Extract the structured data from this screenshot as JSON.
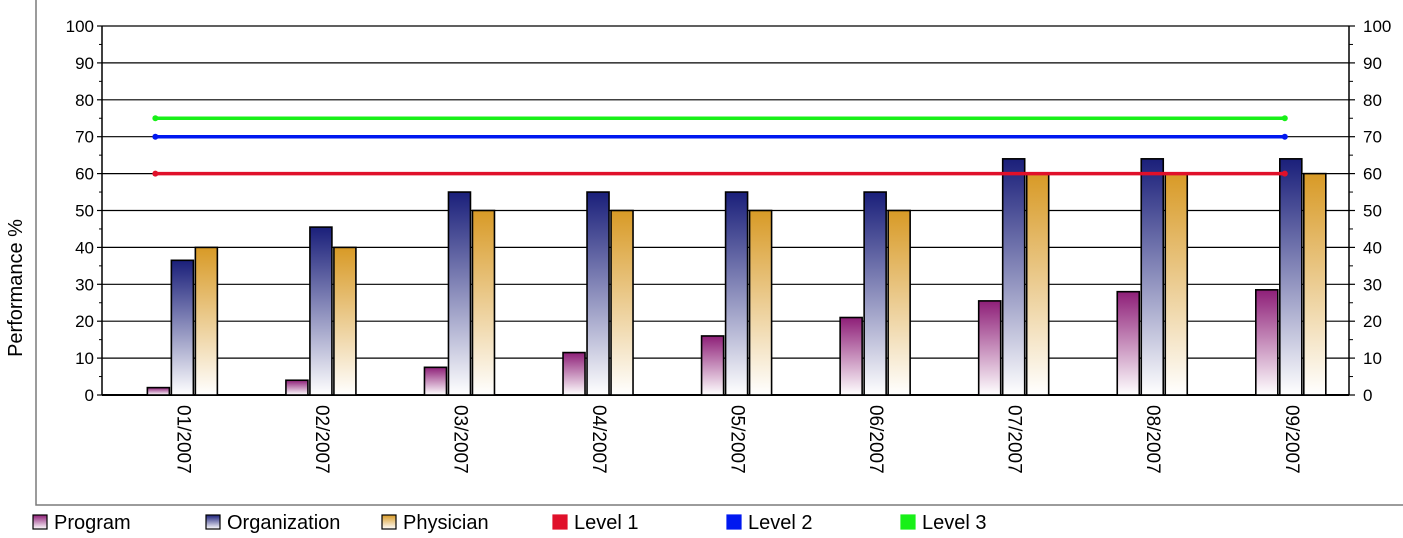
{
  "chart_data": {
    "type": "bar",
    "title": "",
    "xlabel": "",
    "ylabel": "Performance %",
    "ylim": [
      0,
      100
    ],
    "yticks": [
      0,
      10,
      20,
      30,
      40,
      50,
      60,
      70,
      80,
      90,
      100
    ],
    "categories": [
      "01/2007",
      "02/2007",
      "03/2007",
      "04/2007",
      "05/2007",
      "06/2007",
      "07/2007",
      "08/2007",
      "09/2007"
    ],
    "series": [
      {
        "name": "Program",
        "values": [
          2,
          4,
          7.5,
          11.5,
          16,
          21,
          25.5,
          28,
          28.5
        ]
      },
      {
        "name": "Organization",
        "values": [
          36.5,
          45.5,
          55,
          55,
          55,
          55,
          64,
          64,
          64
        ]
      },
      {
        "name": "Physician",
        "values": [
          40,
          40,
          50,
          50,
          50,
          50,
          60,
          60,
          60
        ]
      }
    ],
    "reference_lines": [
      {
        "name": "Level 1",
        "value": 60,
        "color": "#e0102a"
      },
      {
        "name": "Level 2",
        "value": 70,
        "color": "#0018f0"
      },
      {
        "name": "Level 3",
        "value": 75,
        "color": "#18f018"
      }
    ],
    "grid": true,
    "legend_position": "bottom-left",
    "colors": {
      "Program": "#8e1f78",
      "Organization": "#1a1f7a",
      "Physician": "#d89a26",
      "Level 1": "#e0102a",
      "Level 2": "#0018f0",
      "Level 3": "#18f018"
    }
  }
}
